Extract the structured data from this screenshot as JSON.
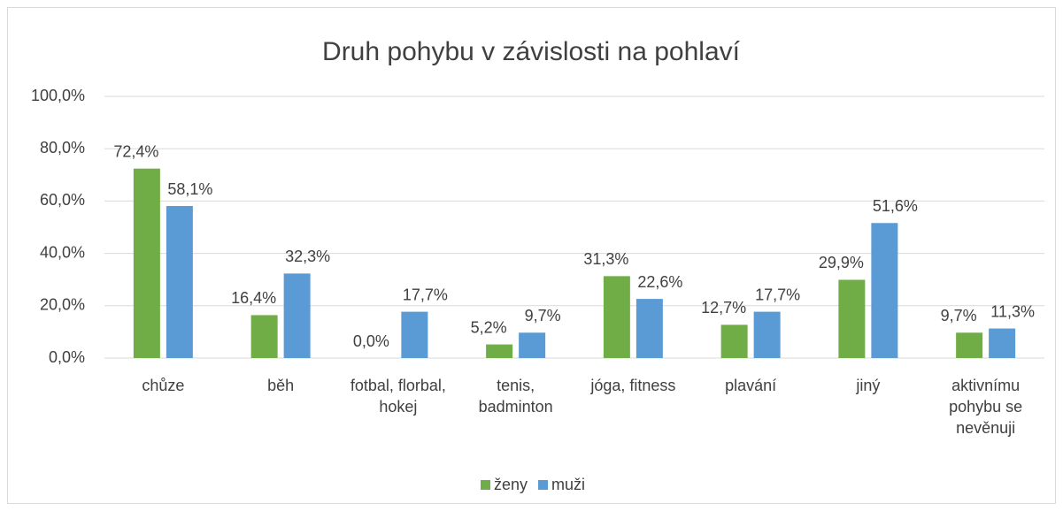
{
  "chart_data": {
    "type": "bar",
    "title": "Druh pohybu v závislosti na pohlaví",
    "categories": [
      "chůze",
      "běh",
      "fotbal, florbal, hokej",
      "tenis, badminton",
      "jóga, fitness",
      "plavání",
      "jiný",
      "aktivnímu pohybu se nevěnuji"
    ],
    "series": [
      {
        "name": "ženy",
        "color": "#70ad47",
        "values": [
          72.4,
          16.4,
          0.0,
          5.2,
          31.3,
          12.7,
          29.9,
          9.7
        ],
        "value_labels": [
          "72,4%",
          "16,4%",
          "0,0%",
          "5,2%",
          "31,3%",
          "12,7%",
          "29,9%",
          "9,7%"
        ]
      },
      {
        "name": "muži",
        "color": "#5b9bd5",
        "values": [
          58.1,
          32.3,
          17.7,
          9.7,
          22.6,
          17.7,
          51.6,
          11.3
        ],
        "value_labels": [
          "58,1%",
          "32,3%",
          "17,7%",
          "9,7%",
          "22,6%",
          "17,7%",
          "51,6%",
          "11,3%"
        ]
      }
    ],
    "ylim": [
      0,
      100
    ],
    "yticks": [
      {
        "value": 0,
        "label": "0,0%"
      },
      {
        "value": 20,
        "label": "20,0%"
      },
      {
        "value": 40,
        "label": "40,0%"
      },
      {
        "value": 60,
        "label": "60,0%"
      },
      {
        "value": 80,
        "label": "80,0%"
      },
      {
        "value": 100,
        "label": "100,0%"
      }
    ],
    "grid": true,
    "legend": "bottom"
  }
}
